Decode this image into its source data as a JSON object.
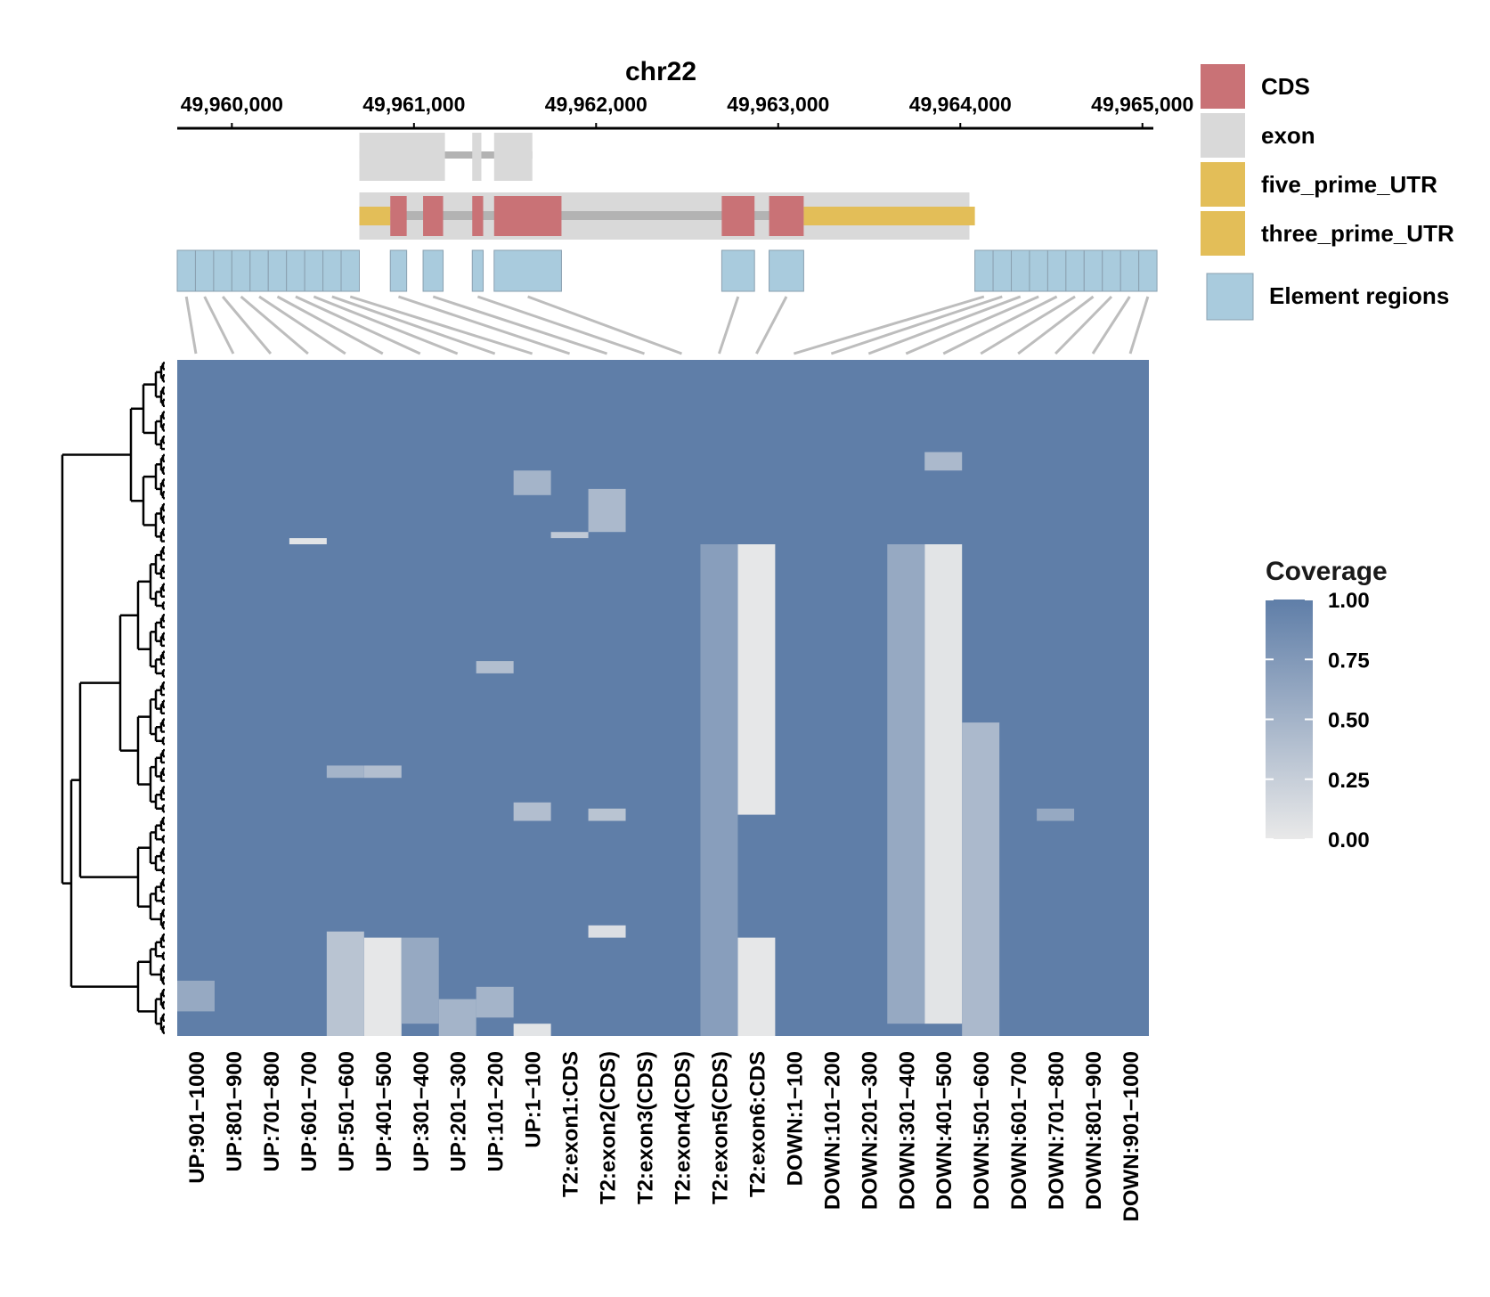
{
  "chart_data": {
    "type": "heatmap",
    "track": {
      "chromosome": "chr22",
      "axis_ticks": [
        49960000,
        49961000,
        49962000,
        49963000,
        49964000,
        49965000
      ],
      "axis_tick_labels": [
        "49,960,000",
        "49,961,000",
        "49,962,000",
        "49,963,000",
        "49,964,000",
        "49,965,000"
      ],
      "xlim": [
        49959700,
        49965060
      ],
      "transcript_1_exons": [
        [
          49960700,
          49961170
        ],
        [
          49961320,
          49961370
        ],
        [
          49961440,
          49961650
        ]
      ],
      "transcript_2": {
        "exon_span": [
          49960700,
          49964050
        ],
        "five_prime_utr": [
          [
            49960700,
            49960870
          ]
        ],
        "cds": [
          [
            49960870,
            49960960
          ],
          [
            49961050,
            49961160
          ],
          [
            49961320,
            49961380
          ],
          [
            49961440,
            49961810
          ],
          [
            49962690,
            49962870
          ],
          [
            49962950,
            49963140
          ]
        ],
        "three_prime_utr": [
          [
            49963140,
            49964080
          ]
        ]
      },
      "element_regions": [
        [
          49959700,
          49959800
        ],
        [
          49959800,
          49959900
        ],
        [
          49959900,
          49960000
        ],
        [
          49960000,
          49960100
        ],
        [
          49960100,
          49960200
        ],
        [
          49960200,
          49960300
        ],
        [
          49960300,
          49960400
        ],
        [
          49960400,
          49960500
        ],
        [
          49960500,
          49960600
        ],
        [
          49960600,
          49960700
        ],
        [
          49960870,
          49960960
        ],
        [
          49961050,
          49961160
        ],
        [
          49961320,
          49961380
        ],
        [
          49961440,
          49961810
        ],
        [
          49962690,
          49962870
        ],
        [
          49962950,
          49963140
        ],
        [
          49964080,
          49964180
        ],
        [
          49964180,
          49964280
        ],
        [
          49964280,
          49964380
        ],
        [
          49964380,
          49964480
        ],
        [
          49964480,
          49964580
        ],
        [
          49964580,
          49964680
        ],
        [
          49964680,
          49964780
        ],
        [
          49964780,
          49964880
        ],
        [
          49964880,
          49964980
        ],
        [
          49964980,
          49965080
        ]
      ]
    },
    "legend": {
      "items": [
        {
          "label": "CDS",
          "color": "#c97276"
        },
        {
          "label": "exon",
          "color": "#d9d9d9"
        },
        {
          "label": "five_prime_UTR",
          "color": "#e3be58"
        },
        {
          "label": "three_prime_UTR",
          "color": "#e3be58"
        },
        {
          "label": "Element regions",
          "color": "#a9cbdd"
        }
      ],
      "placement": "top-right"
    },
    "colorbar": {
      "title": "Coverage",
      "ticks": [
        "1.00",
        "0.75",
        "0.50",
        "0.25",
        "0.00"
      ],
      "low_color": "#e9e9e9",
      "high_color": "#5f7ea8",
      "range": [
        0,
        1
      ]
    },
    "columns": [
      "UP:901−1000",
      "UP:801−900",
      "UP:701−800",
      "UP:601−700",
      "UP:501−600",
      "UP:401−500",
      "UP:301−400",
      "UP:201−300",
      "UP:101−200",
      "UP:1−100",
      "T2:exon1:CDS",
      "T2:exon2(CDS)",
      "T2:exon3(CDS)",
      "T2:exon4(CDS)",
      "T2:exon5(CDS)",
      "T2:exon6:CDS",
      "DOWN:1−100",
      "DOWN:101−200",
      "DOWN:201−300",
      "DOWN:301−400",
      "DOWN:401−500",
      "DOWN:501−600",
      "DOWN:601−700",
      "DOWN:701−800",
      "DOWN:801−900",
      "DOWN:901−1000"
    ],
    "row_count": 110,
    "value_range": [
      0,
      1
    ],
    "default_value": 1.0,
    "low_coverage_blocks": [
      {
        "col": 15,
        "rows": [
          30,
          73
        ],
        "value": 0.02
      },
      {
        "col": 15,
        "rows": [
          94,
          109
        ],
        "value": 0.02
      },
      {
        "col": 20,
        "rows": [
          30,
          107
        ],
        "value": 0.05
      },
      {
        "col": 5,
        "rows": [
          94,
          109
        ],
        "value": 0.02
      },
      {
        "col": 4,
        "rows": [
          93,
          109
        ],
        "value": 0.35
      },
      {
        "col": 6,
        "rows": [
          94,
          107
        ],
        "value": 0.6
      },
      {
        "col": 21,
        "rows": [
          59,
          109
        ],
        "value": 0.45
      },
      {
        "col": 19,
        "rows": [
          30,
          107
        ],
        "value": 0.6
      },
      {
        "col": 14,
        "rows": [
          30,
          109
        ],
        "value": 0.7
      },
      {
        "col": 3,
        "rows": [
          29,
          29
        ],
        "value": 0.05
      },
      {
        "col": 10,
        "rows": [
          28,
          28
        ],
        "value": 0.3
      },
      {
        "col": 11,
        "rows": [
          21,
          27
        ],
        "value": 0.45
      },
      {
        "col": 9,
        "rows": [
          18,
          21
        ],
        "value": 0.5
      },
      {
        "col": 5,
        "rows": [
          66,
          67
        ],
        "value": 0.4
      },
      {
        "col": 4,
        "rows": [
          66,
          67
        ],
        "value": 0.5
      },
      {
        "col": 9,
        "rows": [
          72,
          74
        ],
        "value": 0.4
      },
      {
        "col": 11,
        "rows": [
          73,
          74
        ],
        "value": 0.35
      },
      {
        "col": 8,
        "rows": [
          49,
          50
        ],
        "value": 0.4
      },
      {
        "col": 20,
        "rows": [
          15,
          17
        ],
        "value": 0.45
      },
      {
        "col": 9,
        "rows": [
          108,
          109
        ],
        "value": 0.05
      },
      {
        "col": 8,
        "rows": [
          102,
          106
        ],
        "value": 0.5
      },
      {
        "col": 7,
        "rows": [
          104,
          109
        ],
        "value": 0.5
      },
      {
        "col": 11,
        "rows": [
          92,
          93
        ],
        "value": 0.1
      },
      {
        "col": 0,
        "rows": [
          101,
          105
        ],
        "value": 0.6
      },
      {
        "col": 23,
        "rows": [
          73,
          74
        ],
        "value": 0.6
      }
    ],
    "dendrogram": "row clustering tree shown on left"
  }
}
